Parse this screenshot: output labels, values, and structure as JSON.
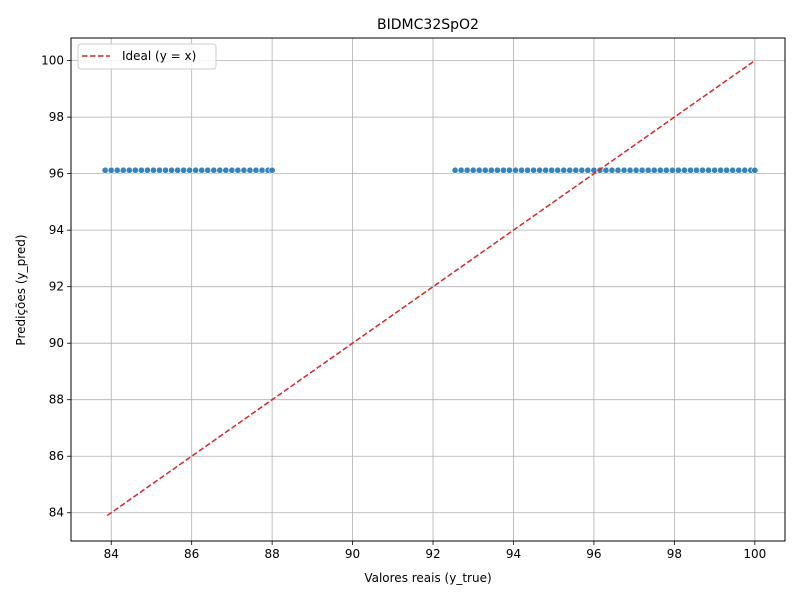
{
  "chart_data": {
    "type": "scatter",
    "title": "BIDMC32SpO2",
    "xlabel": "Valores reais (y_true)",
    "ylabel": "Predições (y_pred)",
    "xlim": [
      83.0,
      100.75
    ],
    "ylim": [
      83.0,
      100.8
    ],
    "xticks": [
      84,
      86,
      88,
      90,
      92,
      94,
      96,
      98,
      100
    ],
    "yticks": [
      84,
      86,
      88,
      90,
      92,
      94,
      96,
      98,
      100
    ],
    "grid": true,
    "legend_position": "upper-left",
    "colors": {
      "points": "#1f77b4",
      "ideal": "#d62728",
      "grid": "#b0b0b0"
    },
    "series": [
      {
        "type": "scatter",
        "y": 96.12,
        "x": [
          83.85,
          84.0,
          84.15,
          84.3,
          84.45,
          84.6,
          84.75,
          84.9,
          85.05,
          85.2,
          85.35,
          85.5,
          85.65,
          85.8,
          85.95,
          86.1,
          86.25,
          86.4,
          86.55,
          86.7,
          86.85,
          87.0,
          87.15,
          87.3,
          87.45,
          87.6,
          87.75,
          87.9,
          88.0,
          92.55,
          92.7,
          92.85,
          93.0,
          93.15,
          93.3,
          93.45,
          93.6,
          93.75,
          93.9,
          94.05,
          94.2,
          94.35,
          94.5,
          94.65,
          94.8,
          94.95,
          95.1,
          95.25,
          95.4,
          95.55,
          95.7,
          95.85,
          96.0,
          96.15,
          96.3,
          96.45,
          96.6,
          96.75,
          96.9,
          97.05,
          97.2,
          97.35,
          97.5,
          97.65,
          97.8,
          97.95,
          98.1,
          98.25,
          98.4,
          98.55,
          98.7,
          98.85,
          99.0,
          99.15,
          99.3,
          99.45,
          99.6,
          99.75,
          99.9,
          100.0
        ]
      },
      {
        "type": "line",
        "name": "Ideal (y = x)",
        "x": [
          83.9,
          100.0
        ],
        "y": [
          83.9,
          100.0
        ]
      }
    ]
  }
}
